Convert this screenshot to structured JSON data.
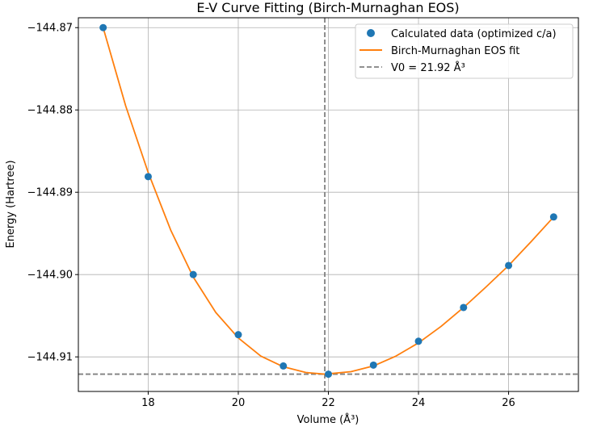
{
  "chart_data": {
    "type": "scatter",
    "title": "E-V Curve Fitting (Birch-Murnaghan EOS)",
    "xlabel": "Volume (Å³)",
    "ylabel": "Energy (Hartree)",
    "xlim": [
      16.45,
      27.55
    ],
    "ylim": [
      -144.9142,
      -144.8688
    ],
    "x_ticks": [
      18,
      20,
      22,
      24,
      26
    ],
    "x_tick_labels": [
      "18",
      "20",
      "22",
      "24",
      "26"
    ],
    "y_ticks": [
      -144.87,
      -144.88,
      -144.89,
      -144.9,
      -144.91
    ],
    "y_tick_labels": [
      "−144.87",
      "−144.88",
      "−144.89",
      "−144.90",
      "−144.91"
    ],
    "grid": true,
    "legend_position": "top-right",
    "series": [
      {
        "name": "Calculated data (optimized c/a)",
        "kind": "scatter",
        "color": "#1f77b4",
        "x": [
          17,
          18,
          19,
          20,
          21,
          22,
          23,
          24,
          25,
          26,
          27
        ],
        "y": [
          -144.87,
          -144.8881,
          -144.9,
          -144.9073,
          -144.9111,
          -144.9121,
          -144.911,
          -144.9081,
          -144.904,
          -144.8989,
          -144.893
        ]
      },
      {
        "name": "Birch-Murnaghan EOS fit",
        "kind": "line",
        "color": "#ff7f0e",
        "x": [
          17,
          17.5,
          18,
          18.5,
          19,
          19.5,
          20,
          20.5,
          21,
          21.5,
          21.92,
          22.5,
          23,
          23.5,
          24,
          24.5,
          25,
          25.5,
          26,
          26.5,
          27
        ],
        "y": [
          -144.87,
          -144.8795,
          -144.8876,
          -144.8946,
          -144.9003,
          -144.9046,
          -144.9077,
          -144.9099,
          -144.9112,
          -144.9119,
          -144.9121,
          -144.9118,
          -144.9111,
          -144.9099,
          -144.9083,
          -144.9063,
          -144.904,
          -144.9015,
          -144.8989,
          -144.896,
          -144.893
        ]
      }
    ],
    "reference_lines": [
      {
        "name": "V0 = 21.92 Å³",
        "orientation": "vertical",
        "value": 21.92,
        "color": "#808080",
        "style": "dashed",
        "in_legend": true
      },
      {
        "orientation": "horizontal",
        "value": -144.9121,
        "color": "#808080",
        "style": "dashed",
        "in_legend": false
      }
    ]
  }
}
